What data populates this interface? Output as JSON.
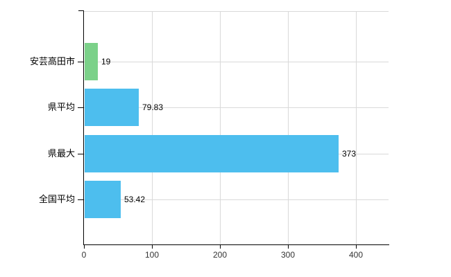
{
  "chart_data": {
    "type": "bar",
    "orientation": "horizontal",
    "title": "",
    "categories": [
      "安芸高田市",
      "県平均",
      "県最大",
      "全国平均"
    ],
    "values": [
      19,
      79.83,
      373,
      53.42
    ],
    "value_labels": [
      "19",
      "79.83",
      "373",
      "53.42"
    ],
    "bar_colors": [
      "#7bd189",
      "#4dbeee",
      "#4dbeee",
      "#4dbeee"
    ],
    "x_ticks": [
      0,
      100,
      200,
      300,
      400
    ],
    "x_tick_labels": [
      "0",
      "100",
      "200",
      "300",
      "400"
    ],
    "xlabel": "",
    "ylabel": "",
    "xlim": [
      0,
      448
    ],
    "grid": true,
    "legend": false,
    "colors": {
      "bar_blue": "#4dbeee",
      "bar_green": "#7bd189",
      "gridline": "#d9d9d9",
      "axis": "#000000",
      "text": "#000000",
      "tick_label": "#333333",
      "background": "#ffffff"
    }
  }
}
